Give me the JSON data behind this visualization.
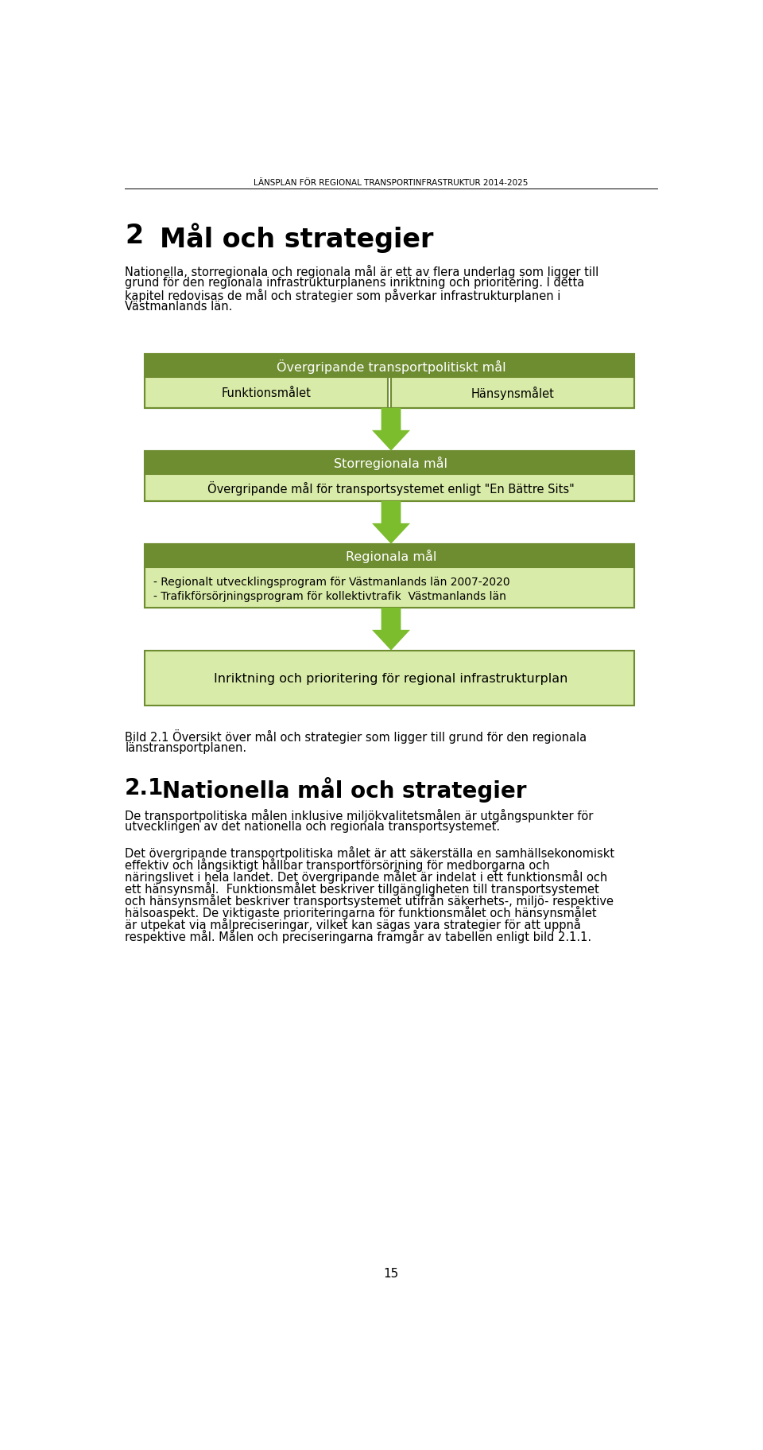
{
  "page_title": "LÄNSPLAN FÖR REGIONAL TRANSPORTINFRASTRUKTUR 2014-2025",
  "chapter_number": "2",
  "chapter_title": "Mål och strategier",
  "intro_lines": [
    "Nationella, storregionala och regionala mål är ett av flera underlag som ligger till",
    "grund för den regionala infrastrukturplanens inriktning och prioritering. I detta",
    "kapitel redovisas de mål och strategier som påverkar infrastrukturplanen i",
    "Västmanlands län."
  ],
  "box1_header": "Övergripande transportpolitiskt mål",
  "box1_left": "Funktionsmålet",
  "box1_right": "Hänsynsmålet",
  "box2_header": "Storregionala mål",
  "box2_sub": "Övergripande mål för transportsystemet enligt \"En Bättre Sits\"",
  "box3_header": "Regionala mål",
  "box3_line1": "- Regionalt utvecklingsprogram för Västmanlands län 2007-2020",
  "box3_line2": "- Trafikförsörjningsprogram för kollektivtrafik  Västmanlands län",
  "box4_text": "Inriktning och prioritering för regional infrastrukturplan",
  "caption_line1": "Bild 2.1 Översikt över mål och strategier som ligger till grund för den regionala",
  "caption_line2": "länstransportplanen.",
  "section_num": "2.1",
  "section_title": "Nationella mål och strategier",
  "body1_lines": [
    "De transportpolitiska målen inklusive miljökvalitetsmålen är utgångspunkter för",
    "utvecklingen av det nationella och regionala transportsystemet."
  ],
  "body2_lines": [
    "Det övergripande transportpolitiska målet är att säkerställa en samhällsekonomiskt",
    "effektiv och långsiktigt hållbar transportförsörjning för medborgarna och",
    "näringslivet i hela landet. Det övergripande målet är indelat i ett funktionsmål och",
    "ett hänsynsmål.  Funktionsmålet beskriver tillgängligheten till transportsystemet",
    "och hänsynsmålet beskriver transportsystemet utifrån säkerhets-, miljö- respektive",
    "hälsoaspekt. De viktigaste prioriteringarna för funktionsmålet och hänsynsmålet",
    "är utpekat via målpreciseringar, vilket kan sägas vara strategier för att uppnå",
    "respektive mål. Målen och preciseringarna framgår av tabellen enligt bild 2.1.1."
  ],
  "page_number": "15",
  "dark_green": "#6e8c30",
  "light_green": "#d9eba8",
  "arrow_green": "#7cbd2e",
  "border_color": "#6e8c30",
  "white": "#ffffff",
  "black": "#000000"
}
